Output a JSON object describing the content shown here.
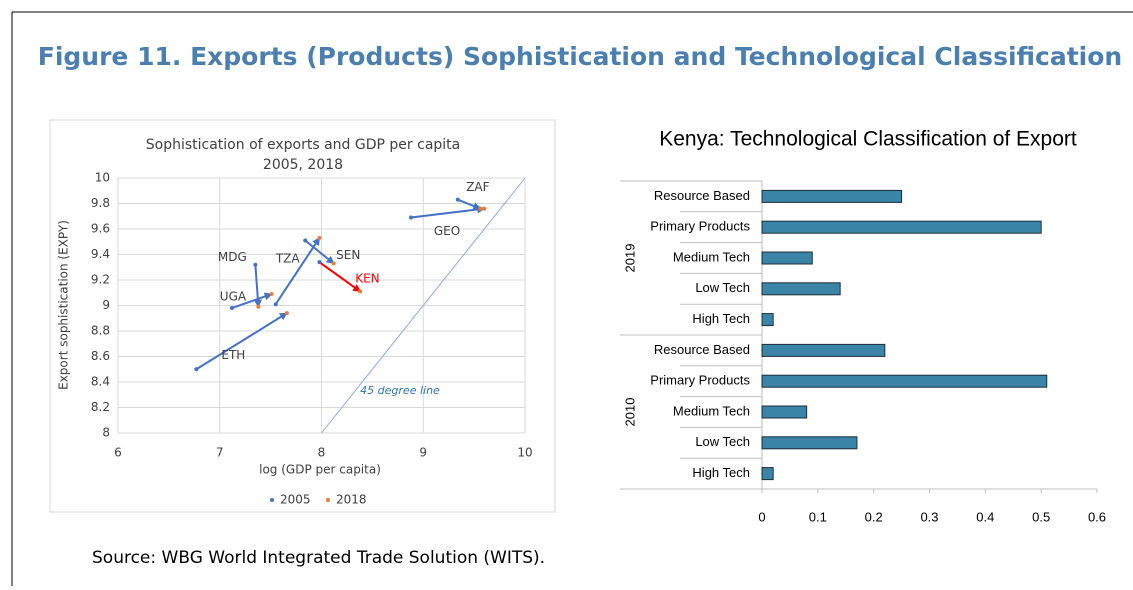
{
  "figure_title": "Figure 11. Exports (Products) Sophistication and Technological Classification",
  "source": "Source: WBG World Integrated Trade Solution (WITS).",
  "chart_data": [
    {
      "type": "scatter",
      "title": "Sophistication of exports and GDP per capita",
      "subtitle": "2005, 2018",
      "x_label": "log (GDP per capita)",
      "y_label": "Export sophistication (EXPY)",
      "annotation": "45 degree line",
      "countries": [
        "ETH",
        "UGA",
        "MDG",
        "TZA",
        "SEN",
        "KEN",
        "GEO",
        "ZAF"
      ],
      "highlight": "KEN",
      "highlight_color": "#ff0000",
      "series": [
        {
          "name": "2005",
          "color": "#4472c4",
          "x": [
            6.77,
            7.12,
            7.35,
            7.55,
            7.84,
            7.98,
            8.88,
            9.34
          ],
          "values": [
            8.5,
            8.98,
            9.32,
            9.01,
            9.51,
            9.34,
            9.69,
            9.83
          ]
        },
        {
          "name": "2018",
          "color": "#ed7d31",
          "x": [
            7.66,
            7.51,
            7.38,
            7.98,
            8.12,
            8.38,
            9.6,
            9.56
          ],
          "values": [
            8.94,
            9.09,
            8.99,
            9.53,
            9.33,
            9.11,
            9.76,
            9.76
          ]
        }
      ],
      "xlim": [
        6,
        10
      ],
      "xticks": [
        6,
        7,
        8,
        9,
        10
      ],
      "ylim": [
        8,
        10
      ],
      "yticks": [
        8,
        8.2,
        8.4,
        8.6,
        8.8,
        9,
        9.2,
        9.4,
        9.6,
        9.8,
        10
      ],
      "grid": true,
      "legend": "bottom"
    },
    {
      "type": "hbar",
      "title": "Kenya: Technological Classification of Export",
      "groups": [
        "2019",
        "2010"
      ],
      "categories": [
        "Resource Based",
        "Primary Products",
        "Medium Tech",
        "Low Tech",
        "High Tech",
        "Resource Based",
        "Primary Products",
        "Medium Tech",
        "Low Tech",
        "High Tech"
      ],
      "values": [
        0.25,
        0.5,
        0.09,
        0.14,
        0.02,
        0.22,
        0.51,
        0.08,
        0.17,
        0.02
      ],
      "color": "#3a84a8",
      "xlim": [
        0,
        0.6
      ],
      "xticks": [
        0,
        0.1,
        0.2,
        0.3,
        0.4,
        0.5,
        0.6
      ]
    }
  ]
}
